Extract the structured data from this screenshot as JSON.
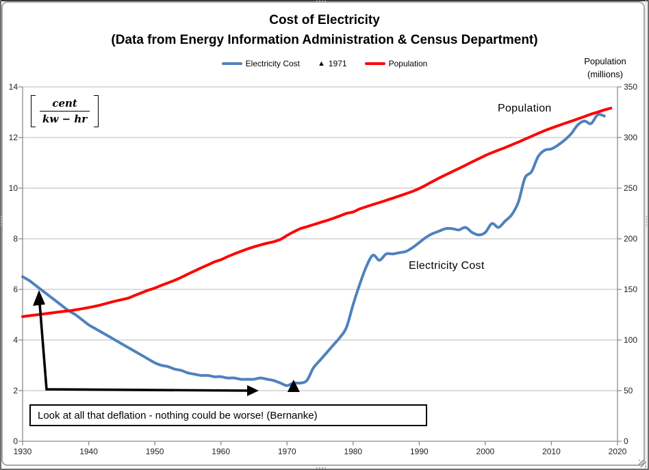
{
  "title": {
    "line1": "Cost of Electricity",
    "line2": "(Data from Energy Information Administration & Census Department)"
  },
  "formula": {
    "numerator": "cent",
    "denominator": "kw − hr"
  },
  "annotation": {
    "text": "Look at all that deflation - nothing could be worse! (Bernanke)"
  },
  "chart_data": {
    "type": "line",
    "title": "Cost of Electricity",
    "subtitle": "(Data from Energy Information Administration & Census Department)",
    "grid": true,
    "legend_position": "top",
    "x": {
      "min": 1930,
      "max": 2020,
      "ticks": [
        1930,
        1940,
        1950,
        1960,
        1970,
        1980,
        1990,
        2000,
        2010,
        2020
      ]
    },
    "left_axis": {
      "units": "cent per kw-hr",
      "min": 0,
      "max": 14,
      "ticks": [
        0,
        2,
        4,
        6,
        8,
        10,
        12,
        14
      ]
    },
    "right_axis": {
      "min": 0,
      "max": 350,
      "ticks": [
        0,
        50,
        100,
        150,
        200,
        250,
        300,
        350
      ],
      "title_lines": [
        "Population",
        "(millions)"
      ]
    },
    "series": [
      {
        "name": "Electricity Cost",
        "axis": "left",
        "color": "#4F81BD",
        "x_start": 1930,
        "x_step": 1,
        "values": [
          6.5,
          6.35,
          6.15,
          5.95,
          5.75,
          5.55,
          5.35,
          5.15,
          5.0,
          4.8,
          4.6,
          4.45,
          4.3,
          4.15,
          4.0,
          3.85,
          3.7,
          3.55,
          3.4,
          3.25,
          3.1,
          3.0,
          2.95,
          2.85,
          2.8,
          2.7,
          2.65,
          2.6,
          2.6,
          2.55,
          2.55,
          2.5,
          2.5,
          2.45,
          2.45,
          2.45,
          2.5,
          2.45,
          2.4,
          2.3,
          2.2,
          2.3,
          2.3,
          2.4,
          2.9,
          3.2,
          3.5,
          3.8,
          4.1,
          4.5,
          5.4,
          6.2,
          6.9,
          7.35,
          7.15,
          7.4,
          7.4,
          7.45,
          7.5,
          7.65,
          7.85,
          8.05,
          8.2,
          8.3,
          8.4,
          8.4,
          8.35,
          8.45,
          8.25,
          8.15,
          8.25,
          8.6,
          8.45,
          8.7,
          8.95,
          9.45,
          10.4,
          10.65,
          11.25,
          11.5,
          11.55,
          11.7,
          11.9,
          12.15,
          12.5,
          12.65,
          12.55,
          12.9,
          12.85
        ]
      },
      {
        "name": "Population",
        "axis": "right",
        "color": "#FF0000",
        "x_start": 1930,
        "x_step": 1,
        "values": [
          123.1,
          124.0,
          124.8,
          125.6,
          126.4,
          127.3,
          128.1,
          128.8,
          129.8,
          130.9,
          132.1,
          133.4,
          134.9,
          136.7,
          138.4,
          139.9,
          141.4,
          144.1,
          146.6,
          149.2,
          151.3,
          154.0,
          156.4,
          159.0,
          161.9,
          165.1,
          168.1,
          171.2,
          174.1,
          177.1,
          179.3,
          182.3,
          185.0,
          187.5,
          189.9,
          192.0,
          193.9,
          195.6,
          197.1,
          199.4,
          203.2,
          206.8,
          209.9,
          211.9,
          213.9,
          216.0,
          218.0,
          220.2,
          222.6,
          225.1,
          226.5,
          229.5,
          231.7,
          233.8,
          235.8,
          237.9,
          240.1,
          242.3,
          244.5,
          246.8,
          249.6,
          252.9,
          256.5,
          259.9,
          263.1,
          266.3,
          269.4,
          272.6,
          275.9,
          279.0,
          282.2,
          285.0,
          287.6,
          290.1,
          292.8,
          295.5,
          298.4,
          301.2,
          304.1,
          306.8,
          309.3,
          311.6,
          313.9,
          316.1,
          318.4,
          320.7,
          323.1,
          325.1,
          327.2,
          329.0
        ]
      }
    ],
    "marker_1971": {
      "label": "1971",
      "x": 1971,
      "value": 2.3,
      "shape": "triangle",
      "color": "#000000"
    },
    "colors": {
      "gridline": "#C6C6C6",
      "axis_line": "#8C8C8C",
      "annotation": "#000000"
    }
  }
}
